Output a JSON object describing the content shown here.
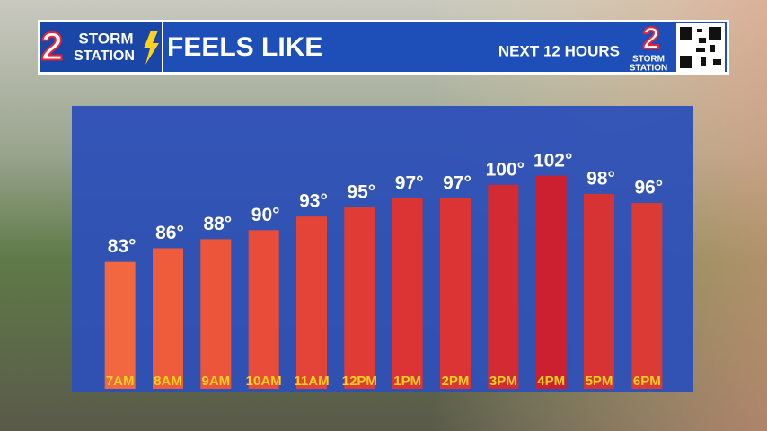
{
  "brand": {
    "number": "2",
    "line1": "STORM",
    "line2": "STATION"
  },
  "chart_data": {
    "type": "bar",
    "title": "FEELS LIKE",
    "subtitle": "NEXT 12 HOURS",
    "categories": [
      "7AM",
      "8AM",
      "9AM",
      "10AM",
      "11AM",
      "12PM",
      "1PM",
      "2PM",
      "3PM",
      "4PM",
      "5PM",
      "6PM"
    ],
    "values": [
      83,
      86,
      88,
      90,
      93,
      95,
      97,
      97,
      100,
      102,
      98,
      96
    ],
    "value_labels": [
      "83°",
      "86°",
      "88°",
      "90°",
      "93°",
      "95°",
      "97°",
      "97°",
      "100°",
      "102°",
      "98°",
      "96°"
    ],
    "colors": [
      "#f2673f",
      "#ef5c3c",
      "#ec553a",
      "#e94c38",
      "#e44437",
      "#e03c35",
      "#dc3434",
      "#dc3434",
      "#d42b33",
      "#cc2030",
      "#d83334",
      "#dc3a35"
    ],
    "ylim": [
      55,
      117
    ]
  }
}
